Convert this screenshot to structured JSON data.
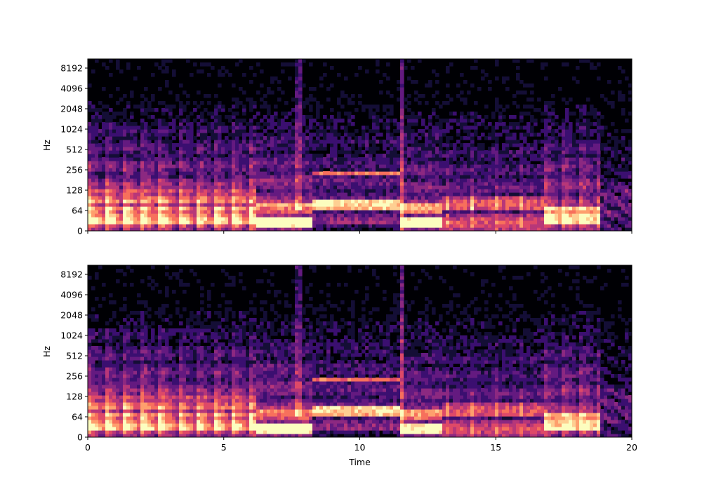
{
  "chart_data": [
    {
      "type": "heatmap",
      "title": "",
      "xlabel": "",
      "ylabel": "Hz",
      "xlim": [
        0,
        20
      ],
      "x_ticks": [
        0,
        5,
        10,
        15,
        20
      ],
      "x_tick_labels_visible": false,
      "y_scale": "log",
      "y_ticks": [
        0,
        64,
        128,
        256,
        512,
        1024,
        2048,
        4096,
        8192
      ],
      "y_tick_labels": [
        "0",
        "64",
        "128",
        "256",
        "512",
        "1024",
        "2048",
        "4096",
        "8192"
      ],
      "colormap": "magma",
      "segments": [
        {
          "start": 0.0,
          "end": 6.2,
          "pattern": "plucked notes every ~0.65 s, energy at 64-128 Hz with harmonics to ~1000 Hz"
        },
        {
          "start": 6.2,
          "end": 8.2,
          "pattern": "sustained low tones at ~32-64 Hz"
        },
        {
          "start": 8.2,
          "end": 11.5,
          "pattern": "sustained tone at ~90 Hz with harmonic near 256 Hz"
        },
        {
          "start": 11.5,
          "end": 13.0,
          "pattern": "sustained low tones at ~32-64 Hz"
        },
        {
          "start": 13.0,
          "end": 16.8,
          "pattern": "rapid notes around 64-128 Hz"
        },
        {
          "start": 16.8,
          "end": 18.8,
          "pattern": "plucked notes at 32-64 Hz"
        },
        {
          "start": 18.8,
          "end": 20.0,
          "pattern": "decay, low energy"
        }
      ],
      "grid": false
    },
    {
      "type": "heatmap",
      "title": "",
      "xlabel": "Time",
      "ylabel": "Hz",
      "xlim": [
        0,
        20
      ],
      "x_ticks": [
        0,
        5,
        10,
        15,
        20
      ],
      "x_tick_labels": [
        "0",
        "5",
        "10",
        "15",
        "20"
      ],
      "y_scale": "log",
      "y_ticks": [
        0,
        64,
        128,
        256,
        512,
        1024,
        2048,
        4096,
        8192
      ],
      "y_tick_labels": [
        "0",
        "64",
        "128",
        "256",
        "512",
        "1024",
        "2048",
        "4096",
        "8192"
      ],
      "colormap": "magma",
      "grid": false
    }
  ],
  "colors": {
    "background": "#000004",
    "low": "#3b0f70",
    "mid": "#8c2981",
    "midhigh": "#de4968",
    "high": "#fe9f6d",
    "peak": "#fcfdbf"
  }
}
